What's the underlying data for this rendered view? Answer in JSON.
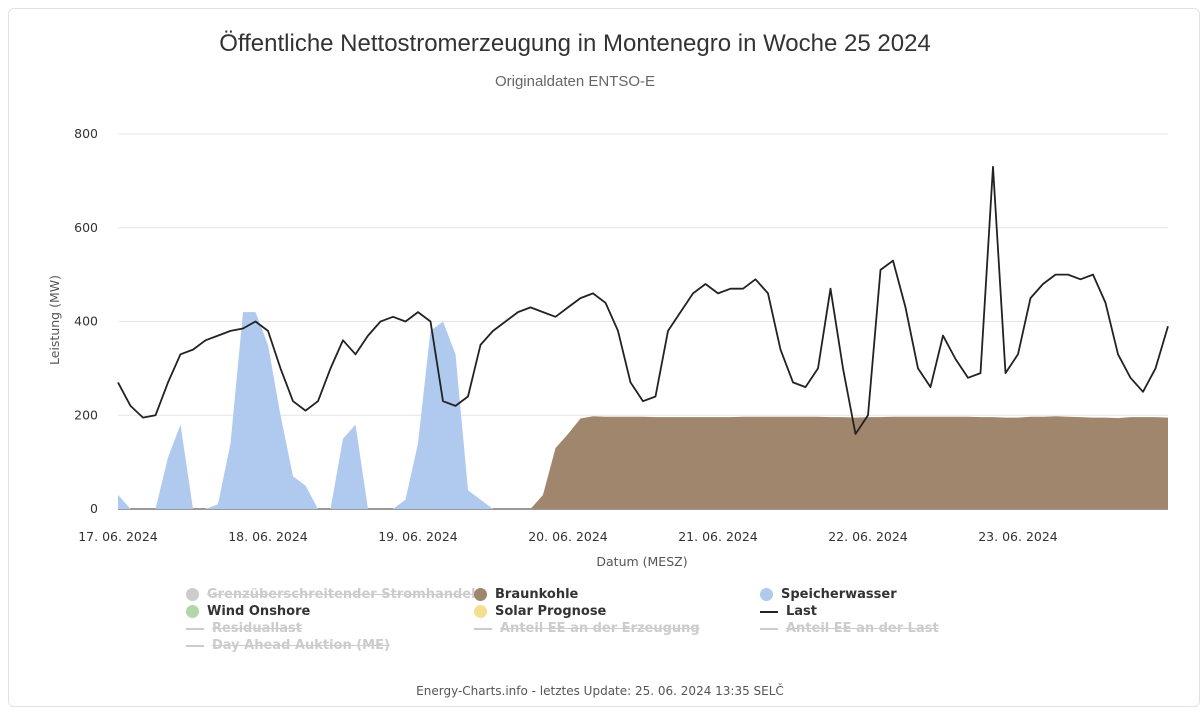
{
  "chart_data": {
    "type": "area",
    "title": "Öffentliche Nettostromerzeugung in Montenegro in Woche 25 2024",
    "subtitle": "Originaldaten ENTSO-E",
    "xlabel": "Datum (MESZ)",
    "ylabel": "Leistung (MW)",
    "ylim": [
      0,
      800
    ],
    "y_ticks": [
      0,
      200,
      400,
      600,
      800
    ],
    "x_ticks": [
      "17. 06. 2024",
      "18. 06. 2024",
      "19. 06. 2024",
      "20. 06. 2024",
      "21. 06. 2024",
      "22. 06. 2024",
      "23. 06. 2024"
    ],
    "x_unit": "hours since 17. 06. 2024 00:00",
    "x_range": [
      0,
      168
    ],
    "grid": true,
    "legend_position": "bottom",
    "x": [
      0,
      2,
      4,
      6,
      8,
      10,
      12,
      14,
      16,
      18,
      20,
      22,
      24,
      26,
      28,
      30,
      32,
      34,
      36,
      38,
      40,
      42,
      44,
      46,
      48,
      50,
      52,
      54,
      56,
      58,
      60,
      62,
      64,
      66,
      68,
      70,
      72,
      74,
      76,
      78,
      80,
      82,
      84,
      86,
      88,
      90,
      92,
      94,
      96,
      98,
      100,
      102,
      104,
      106,
      108,
      110,
      112,
      114,
      116,
      118,
      120,
      122,
      124,
      126,
      128,
      130,
      132,
      134,
      136,
      138,
      140,
      142,
      144,
      146,
      148,
      150,
      152,
      154,
      156,
      158,
      160,
      162,
      164,
      166,
      168
    ],
    "series": [
      {
        "name": "Braunkohle",
        "color": "#a0866d",
        "stacked": true,
        "values": [
          0,
          0,
          0,
          0,
          0,
          0,
          0,
          0,
          0,
          0,
          0,
          0,
          0,
          0,
          0,
          0,
          0,
          0,
          0,
          0,
          0,
          0,
          0,
          0,
          0,
          0,
          0,
          0,
          0,
          0,
          0,
          0,
          0,
          0,
          30,
          130,
          160,
          193,
          198,
          197,
          197,
          197,
          197,
          196,
          196,
          196,
          196,
          196,
          196,
          196,
          197,
          197,
          197,
          197,
          197,
          197,
          197,
          196,
          196,
          195,
          196,
          196,
          197,
          197,
          197,
          197,
          197,
          197,
          197,
          196,
          196,
          195,
          195,
          197,
          197,
          198,
          197,
          196,
          195,
          195,
          194,
          196,
          196,
          196,
          195
        ]
      },
      {
        "name": "Wind Onshore",
        "color": "#b3d6a8",
        "stacked": true,
        "values": [
          0,
          0,
          0,
          0,
          0,
          0,
          0,
          0,
          0,
          0,
          0,
          0,
          0,
          0,
          0,
          0,
          0,
          0,
          0,
          0,
          0,
          0,
          0,
          0,
          0,
          0,
          0,
          0,
          0,
          0,
          0,
          0,
          0,
          0,
          0,
          0,
          0,
          0,
          0,
          0,
          0,
          0,
          0,
          0,
          0,
          0,
          0,
          0,
          0,
          0,
          0,
          0,
          0,
          0,
          0,
          0,
          0,
          0,
          0,
          0,
          0,
          0,
          0,
          0,
          0,
          0,
          0,
          0,
          0,
          0,
          0,
          0,
          0,
          0,
          0,
          0,
          0,
          0,
          0,
          0,
          0,
          0,
          0,
          0,
          0
        ]
      },
      {
        "name": "Solar Prognose",
        "color": "#f2e08e",
        "stacked": true,
        "values": [
          0,
          0,
          0,
          0,
          0,
          0,
          0,
          0,
          0,
          0,
          0,
          0,
          0,
          0,
          0,
          0,
          0,
          0,
          0,
          0,
          0,
          0,
          0,
          0,
          0,
          0,
          0,
          0,
          0,
          0,
          0,
          0,
          0,
          0,
          0,
          0,
          0,
          0,
          0,
          0,
          0,
          0,
          0,
          0,
          0,
          0,
          0,
          0,
          0,
          0,
          0,
          0,
          0,
          0,
          0,
          0,
          0,
          0,
          0,
          0,
          0,
          0,
          0,
          0,
          0,
          0,
          0,
          0,
          0,
          0,
          0,
          0,
          0,
          0,
          0,
          0,
          0,
          0,
          0,
          0,
          0,
          0,
          0,
          0,
          0
        ]
      },
      {
        "name": "Speicherwasser",
        "color": "#b0c9ef",
        "stacked": true,
        "values": [
          30,
          0,
          0,
          0,
          110,
          180,
          0,
          0,
          10,
          140,
          420,
          420,
          350,
          200,
          70,
          50,
          0,
          0,
          150,
          180,
          0,
          0,
          0,
          20,
          140,
          380,
          400,
          330,
          40,
          20,
          0,
          0,
          0,
          0,
          0,
          0,
          0,
          0,
          0,
          0,
          0,
          0,
          0,
          0,
          0,
          0,
          0,
          0,
          0,
          0,
          0,
          0,
          0,
          0,
          0,
          0,
          0,
          0,
          0,
          0,
          0,
          0,
          0,
          0,
          0,
          0,
          0,
          0,
          0,
          0,
          0,
          0,
          0,
          0,
          0,
          0,
          0,
          0,
          0,
          0,
          0,
          0,
          0,
          0,
          0
        ]
      },
      {
        "name": "Last",
        "color": "#222222",
        "line": true,
        "values": [
          270,
          220,
          195,
          200,
          270,
          330,
          340,
          360,
          370,
          380,
          385,
          400,
          380,
          300,
          230,
          210,
          230,
          300,
          360,
          330,
          370,
          400,
          410,
          400,
          420,
          400,
          230,
          220,
          240,
          350,
          380,
          400,
          420,
          430,
          420,
          410,
          430,
          450,
          460,
          440,
          380,
          270,
          230,
          240,
          380,
          420,
          460,
          480,
          460,
          470,
          470,
          490,
          460,
          340,
          270,
          260,
          300,
          470,
          300,
          160,
          200,
          510,
          530,
          430,
          300,
          260,
          370,
          320,
          280,
          290,
          730,
          290,
          330,
          450,
          480,
          500,
          500,
          490,
          500,
          440,
          330,
          280,
          250,
          300,
          390
        ]
      }
    ]
  },
  "legend": [
    {
      "label": "Grenzüberschreitender Stromhandel",
      "color": "#c8c8c8",
      "symbol": "dot",
      "hidden": true
    },
    {
      "label": "Braunkohle",
      "color": "#a0866d",
      "symbol": "dot",
      "hidden": false
    },
    {
      "label": "Speicherwasser",
      "color": "#b0c9ef",
      "symbol": "dot",
      "hidden": false
    },
    {
      "label": "Wind Onshore",
      "color": "#b3d6a8",
      "symbol": "dot",
      "hidden": false
    },
    {
      "label": "Solar Prognose",
      "color": "#f2e08e",
      "symbol": "dot",
      "hidden": false
    },
    {
      "label": "Last",
      "color": "#222222",
      "symbol": "line",
      "hidden": false
    },
    {
      "label": "Residuallast",
      "color": "#cccccc",
      "symbol": "line",
      "hidden": true
    },
    {
      "label": "Anteil EE an der Erzeugung",
      "color": "#cccccc",
      "symbol": "line",
      "hidden": true
    },
    {
      "label": "Anteil EE an der Last",
      "color": "#cccccc",
      "symbol": "line",
      "hidden": true
    },
    {
      "label": "Day Ahead Auktion (ME)",
      "color": "#cccccc",
      "symbol": "line",
      "hidden": true
    }
  ],
  "footer": "Energy-Charts.info - letztes Update: 25. 06. 2024 13:35 SELČ"
}
